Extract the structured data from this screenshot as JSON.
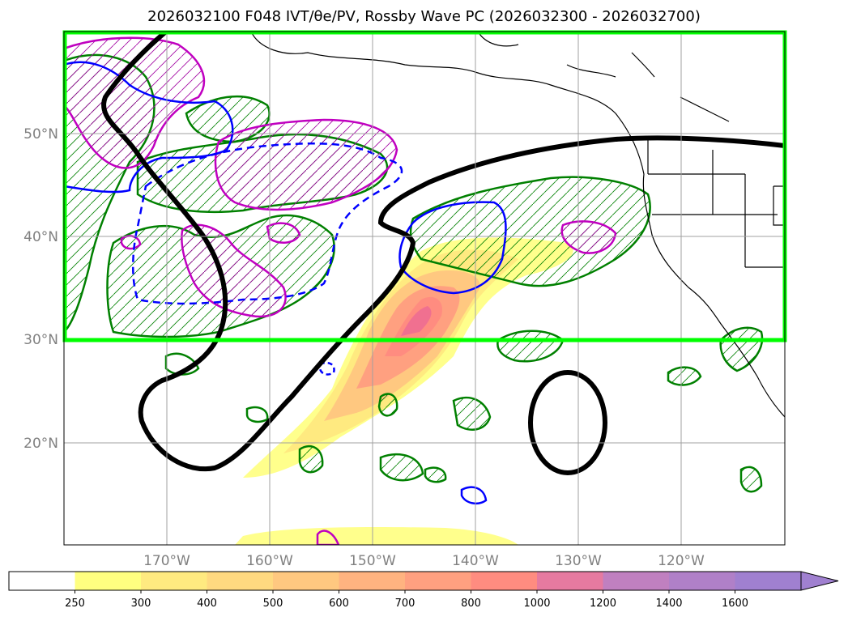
{
  "title": "2026032100 F048 IVT/θe/PV, Rossby Wave PC (2026032300 - 2026032700)",
  "map": {
    "lat_labels": [
      "50°N",
      "40°N",
      "30°N",
      "20°N"
    ],
    "lon_labels": [
      "170°W",
      "160°W",
      "150°W",
      "140°W",
      "130°W",
      "120°W"
    ],
    "highlight_color": "#00ff00",
    "contour_colors": {
      "pv": "#000000",
      "theta_e_pos": "#008000",
      "theta_e_neg": "#0000ff",
      "rossby": "#c000c0"
    }
  },
  "colorbar": {
    "ticks": [
      "250",
      "300",
      "400",
      "500",
      "600",
      "700",
      "800",
      "1000",
      "1200",
      "1400",
      "1600"
    ],
    "colors": [
      "#ffffff",
      "#ffff80",
      "#ffea80",
      "#ffd980",
      "#ffc880",
      "#ffb380",
      "#ffa080",
      "#ff8c80",
      "#e67aa0",
      "#c080c0",
      "#b080c8",
      "#a080d0"
    ]
  }
}
